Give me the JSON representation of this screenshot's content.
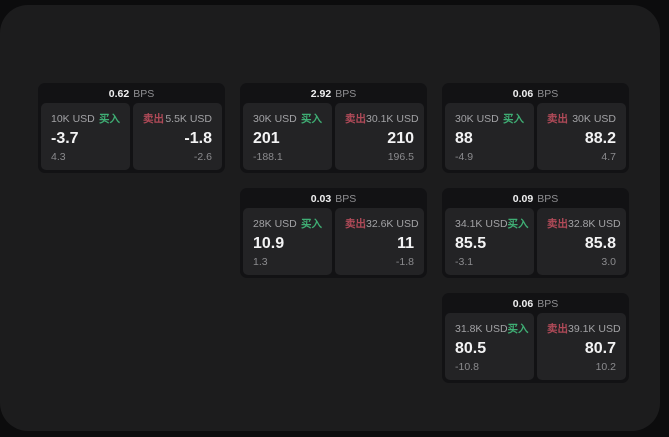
{
  "page": {
    "bg_color": "#0c0c0d",
    "panel_color": "#1c1c1d",
    "card_color": "#121214",
    "tile_color": "#232325",
    "buy_color": "#3fae74",
    "sell_color": "#b04a58"
  },
  "cards": [
    {
      "bps_value": "0.62",
      "bps_unit": "BPS",
      "buy": {
        "amount": "10K USD",
        "label": "买入",
        "price": "-3.7",
        "change": "4.3"
      },
      "sell": {
        "label": "卖出",
        "amount": "5.5K USD",
        "price": "-1.8",
        "change": "-2.6"
      }
    },
    {
      "bps_value": "2.92",
      "bps_unit": "BPS",
      "buy": {
        "amount": "30K USD",
        "label": "买入",
        "price": "201",
        "change": "-188.1"
      },
      "sell": {
        "label": "卖出",
        "amount": "30.1K USD",
        "price": "210",
        "change": "196.5"
      }
    },
    {
      "bps_value": "0.06",
      "bps_unit": "BPS",
      "buy": {
        "amount": "30K USD",
        "label": "买入",
        "price": "88",
        "change": "-4.9"
      },
      "sell": {
        "label": "卖出",
        "amount": "30K USD",
        "price": "88.2",
        "change": "4.7"
      }
    },
    {
      "bps_value": "0.03",
      "bps_unit": "BPS",
      "buy": {
        "amount": "28K USD",
        "label": "买入",
        "price": "10.9",
        "change": "1.3"
      },
      "sell": {
        "label": "卖出",
        "amount": "32.6K USD",
        "price": "11",
        "change": "-1.8"
      }
    },
    {
      "bps_value": "0.09",
      "bps_unit": "BPS",
      "buy": {
        "amount": "34.1K USD",
        "label": "买入",
        "price": "85.5",
        "change": "-3.1"
      },
      "sell": {
        "label": "卖出",
        "amount": "32.8K USD",
        "price": "85.8",
        "change": "3.0"
      }
    },
    {
      "bps_value": "0.06",
      "bps_unit": "BPS",
      "buy": {
        "amount": "31.8K USD",
        "label": "买入",
        "price": "80.5",
        "change": "-10.8"
      },
      "sell": {
        "label": "卖出",
        "amount": "39.1K USD",
        "price": "80.7",
        "change": "10.2"
      }
    }
  ]
}
